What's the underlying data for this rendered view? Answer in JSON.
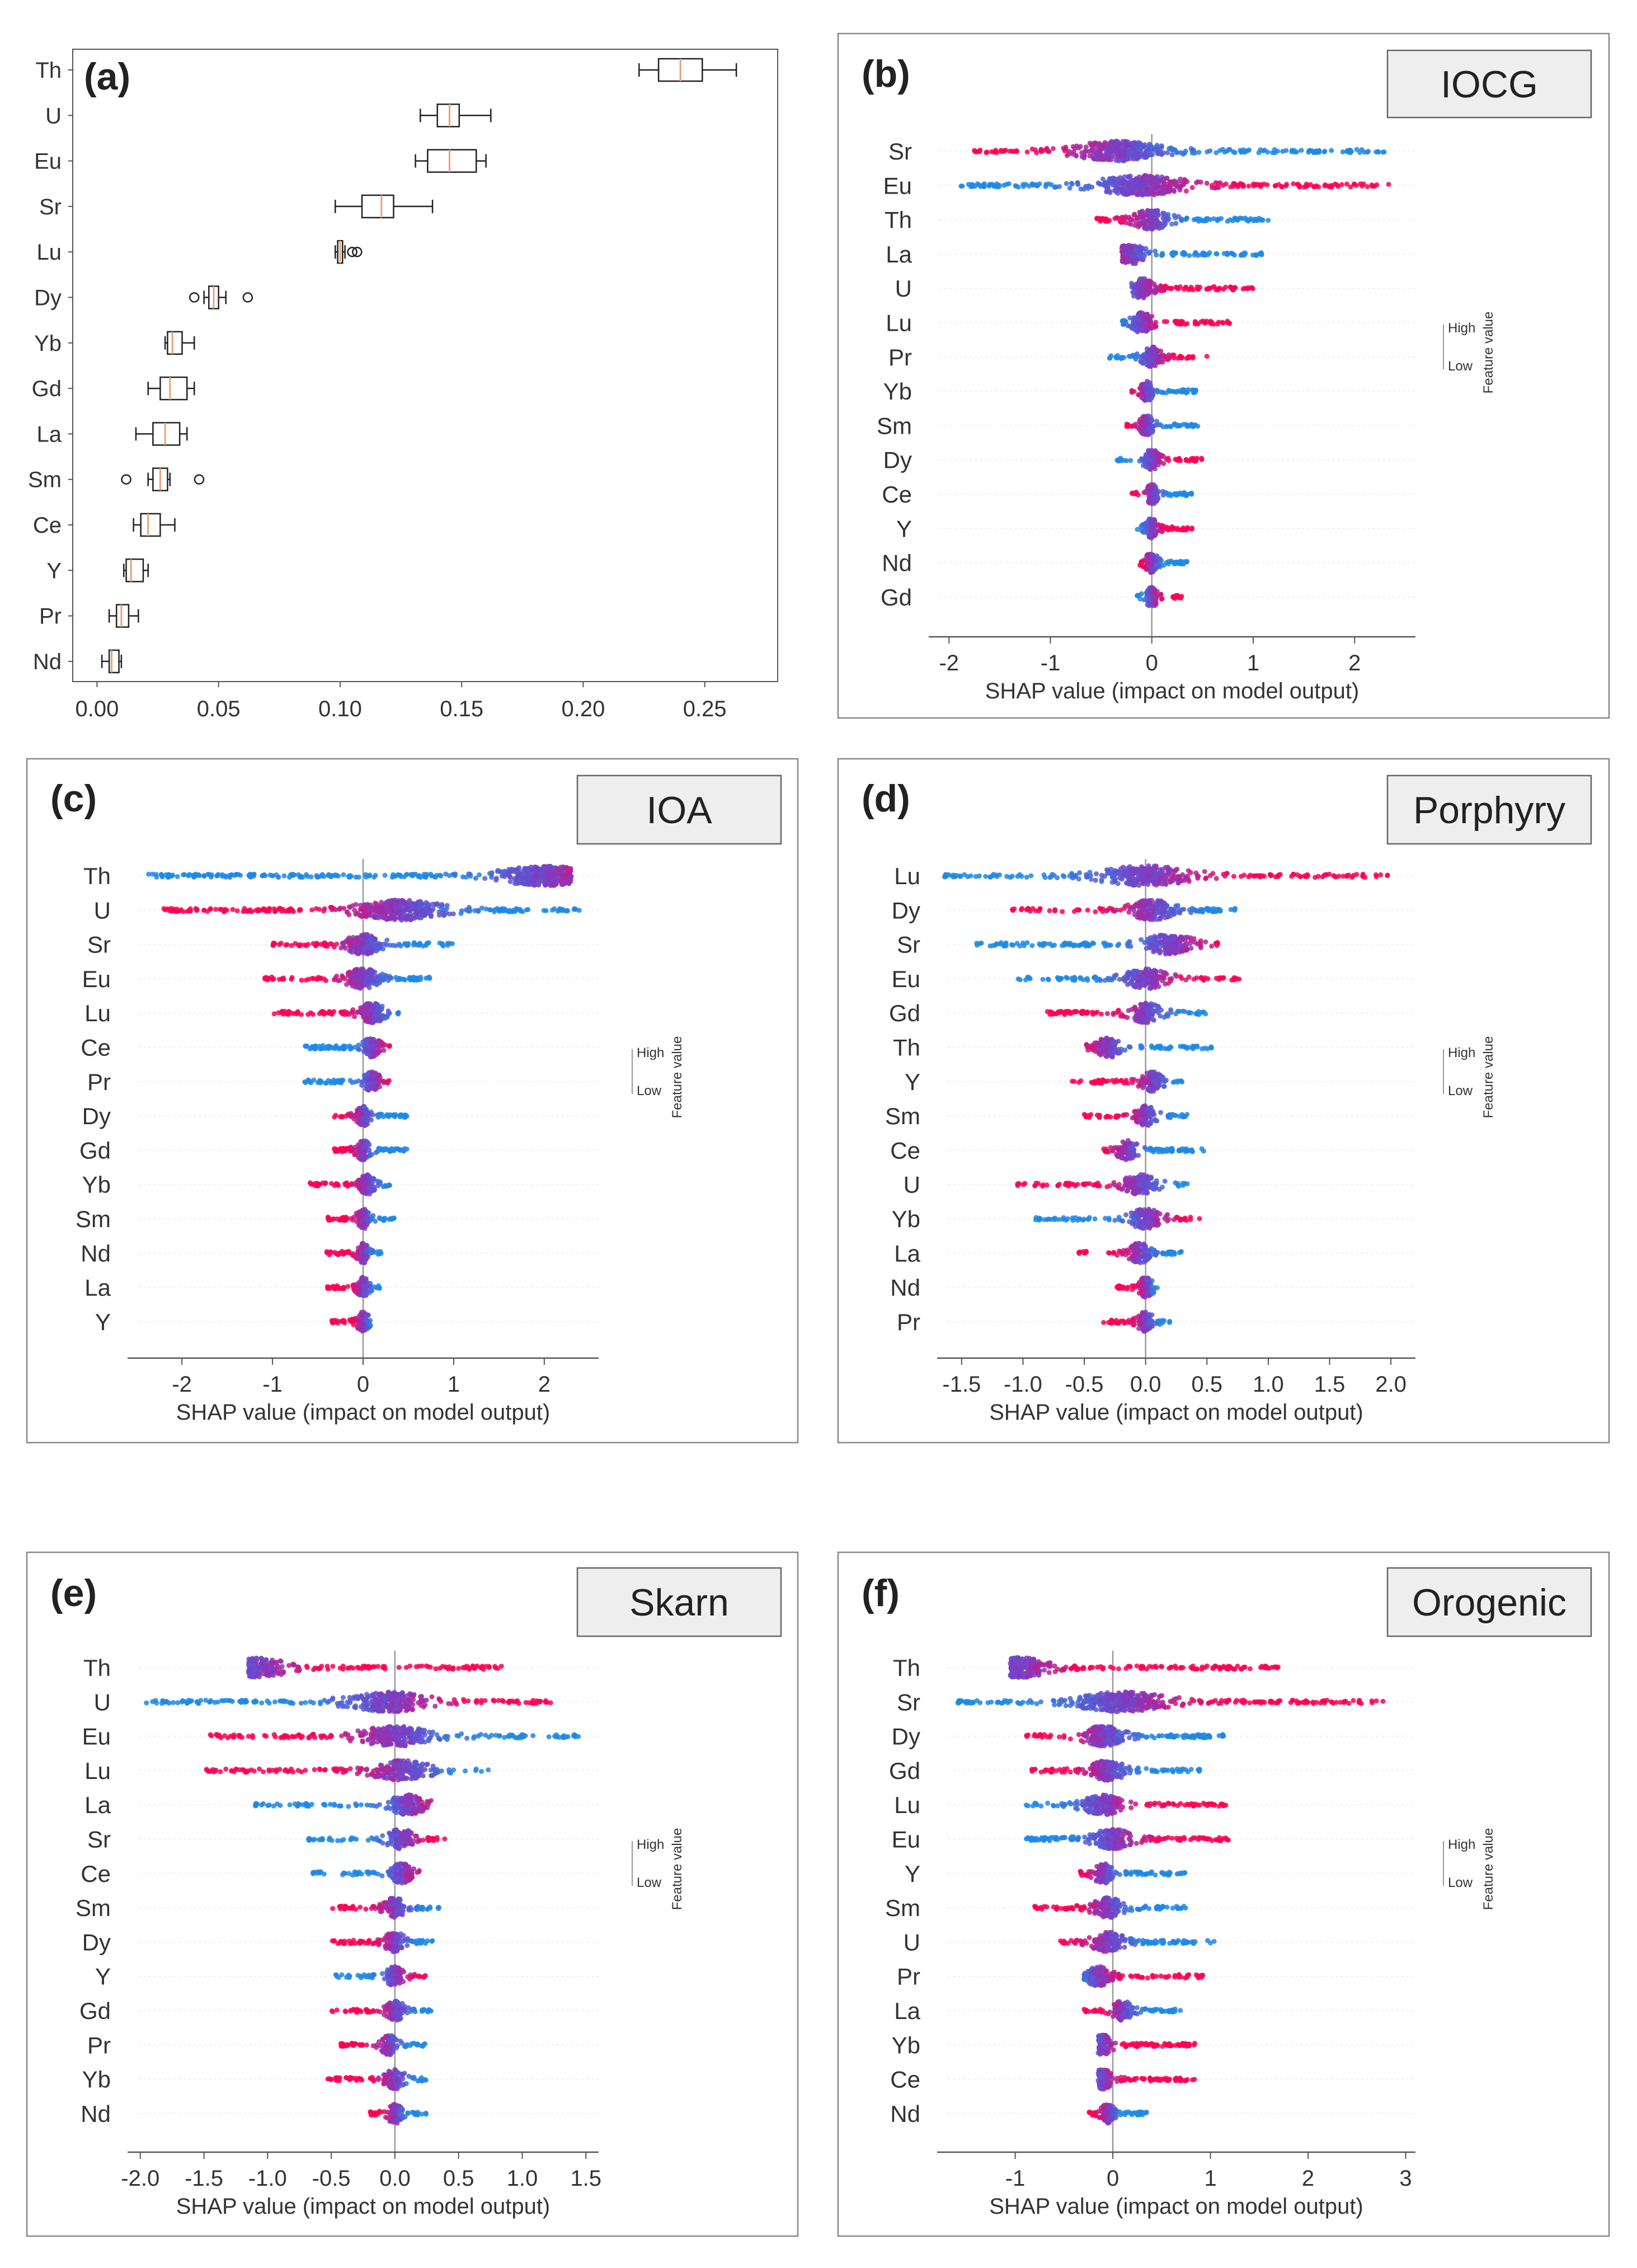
{
  "figure": {
    "x_label": "SHAP value (impact on model output)",
    "legend_high": "High",
    "legend_low": "Low",
    "legend_title": "Feature value",
    "colors": {
      "low": "#1e88e5",
      "mid": "#7a3ec7",
      "high": "#ff0052",
      "box": "#222222",
      "median": "#e8a37a",
      "frame": "#888888",
      "label_box_fill": "#eeeeee"
    }
  },
  "chart_data": [
    {
      "panel": "(a)",
      "type": "box",
      "title": "",
      "xlim": [
        -0.01,
        0.28
      ],
      "xticks": [
        0.0,
        0.05,
        0.1,
        0.15,
        0.2,
        0.25
      ],
      "xtick_labels": [
        "0.00",
        "0.05",
        "0.10",
        "0.15",
        "0.20",
        "0.25"
      ],
      "categories": [
        "Th",
        "U",
        "Eu",
        "Sr",
        "Lu",
        "Dy",
        "Yb",
        "Gd",
        "La",
        "Sm",
        "Ce",
        "Y",
        "Pr",
        "Nd"
      ],
      "boxes": [
        {
          "min": 0.223,
          "q1": 0.231,
          "median": 0.24,
          "q3": 0.249,
          "max": 0.263,
          "outliers": []
        },
        {
          "min": 0.133,
          "q1": 0.14,
          "median": 0.145,
          "q3": 0.149,
          "max": 0.162,
          "outliers": []
        },
        {
          "min": 0.131,
          "q1": 0.136,
          "median": 0.145,
          "q3": 0.156,
          "max": 0.16,
          "outliers": []
        },
        {
          "min": 0.098,
          "q1": 0.109,
          "median": 0.117,
          "q3": 0.122,
          "max": 0.138,
          "outliers": []
        },
        {
          "min": 0.098,
          "q1": 0.099,
          "median": 0.1,
          "q3": 0.101,
          "max": 0.102,
          "outliers": [
            0.105,
            0.107
          ]
        },
        {
          "min": 0.044,
          "q1": 0.046,
          "median": 0.048,
          "q3": 0.05,
          "max": 0.053,
          "outliers": [
            0.04,
            0.062
          ]
        },
        {
          "min": 0.028,
          "q1": 0.029,
          "median": 0.031,
          "q3": 0.035,
          "max": 0.04,
          "outliers": []
        },
        {
          "min": 0.021,
          "q1": 0.026,
          "median": 0.03,
          "q3": 0.037,
          "max": 0.04,
          "outliers": []
        },
        {
          "min": 0.016,
          "q1": 0.023,
          "median": 0.028,
          "q3": 0.034,
          "max": 0.037,
          "outliers": []
        },
        {
          "min": 0.021,
          "q1": 0.023,
          "median": 0.026,
          "q3": 0.029,
          "max": 0.03,
          "outliers": [
            0.012,
            0.042
          ]
        },
        {
          "min": 0.015,
          "q1": 0.018,
          "median": 0.021,
          "q3": 0.026,
          "max": 0.032,
          "outliers": []
        },
        {
          "min": 0.011,
          "q1": 0.012,
          "median": 0.014,
          "q3": 0.019,
          "max": 0.021,
          "outliers": []
        },
        {
          "min": 0.005,
          "q1": 0.008,
          "median": 0.01,
          "q3": 0.013,
          "max": 0.017,
          "outliers": []
        },
        {
          "min": 0.002,
          "q1": 0.005,
          "median": 0.006,
          "q3": 0.009,
          "max": 0.01,
          "outliers": []
        }
      ]
    },
    {
      "panel": "(b)",
      "type": "beeswarm",
      "title": "IOCG",
      "xlabel": "SHAP value (impact on model output)",
      "xlim": [
        -2.2,
        2.6
      ],
      "xticks": [
        -2,
        -1,
        0,
        1,
        2
      ],
      "xtick_labels": [
        "-2",
        "-1",
        "0",
        "1",
        "2"
      ],
      "features": [
        {
          "name": "Sr",
          "min": -1.8,
          "max": 2.3,
          "center": -0.35,
          "dir": -1
        },
        {
          "name": "Eu",
          "min": -1.9,
          "max": 2.35,
          "center": -0.1,
          "dir": 1
        },
        {
          "name": "Th",
          "min": -0.55,
          "max": 1.2,
          "center": 0.0,
          "dir": -1
        },
        {
          "name": "La",
          "min": -0.3,
          "max": 1.1,
          "center": -0.2,
          "dir": -1
        },
        {
          "name": "U",
          "min": -0.2,
          "max": 1.0,
          "center": -0.1,
          "dir": 1
        },
        {
          "name": "Lu",
          "min": -0.3,
          "max": 0.8,
          "center": -0.1,
          "dir": 1
        },
        {
          "name": "Pr",
          "min": -0.45,
          "max": 0.55,
          "center": 0.0,
          "dir": 1
        },
        {
          "name": "Yb",
          "min": -0.2,
          "max": 0.45,
          "center": -0.05,
          "dir": -1
        },
        {
          "name": "Sm",
          "min": -0.25,
          "max": 0.5,
          "center": -0.05,
          "dir": -1
        },
        {
          "name": "Dy",
          "min": -0.35,
          "max": 0.5,
          "center": 0.0,
          "dir": 1
        },
        {
          "name": "Ce",
          "min": -0.2,
          "max": 0.4,
          "center": 0.0,
          "dir": -1
        },
        {
          "name": "Y",
          "min": -0.15,
          "max": 0.4,
          "center": 0.0,
          "dir": 1
        },
        {
          "name": "Nd",
          "min": -0.15,
          "max": 0.35,
          "center": 0.0,
          "dir": -1
        },
        {
          "name": "Gd",
          "min": -0.15,
          "max": 0.3,
          "center": 0.0,
          "dir": 1
        }
      ]
    },
    {
      "panel": "(c)",
      "type": "beeswarm",
      "title": "IOA",
      "xlabel": "SHAP value (impact on model output)",
      "xlim": [
        -2.6,
        2.6
      ],
      "xticks": [
        -2,
        -1,
        0,
        1,
        2
      ],
      "xtick_labels": [
        "-2",
        "-1",
        "0",
        "1",
        "2"
      ],
      "features": [
        {
          "name": "Th",
          "min": -2.4,
          "max": 2.3,
          "center": 2.0,
          "dir": 1
        },
        {
          "name": "U",
          "min": -2.2,
          "max": 2.4,
          "center": 0.4,
          "dir": -1
        },
        {
          "name": "Sr",
          "min": -1.0,
          "max": 1.0,
          "center": 0.0,
          "dir": -1
        },
        {
          "name": "Eu",
          "min": -1.1,
          "max": 0.75,
          "center": 0.0,
          "dir": -1
        },
        {
          "name": "Lu",
          "min": -1.0,
          "max": 0.4,
          "center": 0.1,
          "dir": -1
        },
        {
          "name": "Ce",
          "min": -0.65,
          "max": 0.3,
          "center": 0.1,
          "dir": 1
        },
        {
          "name": "Pr",
          "min": -0.65,
          "max": 0.3,
          "center": 0.1,
          "dir": 1
        },
        {
          "name": "Dy",
          "min": -0.35,
          "max": 0.5,
          "center": 0.0,
          "dir": -1
        },
        {
          "name": "Gd",
          "min": -0.35,
          "max": 0.5,
          "center": 0.0,
          "dir": -1
        },
        {
          "name": "Yb",
          "min": -0.6,
          "max": 0.3,
          "center": 0.05,
          "dir": -1
        },
        {
          "name": "Sm",
          "min": -0.4,
          "max": 0.35,
          "center": 0.0,
          "dir": -1
        },
        {
          "name": "Nd",
          "min": -0.4,
          "max": 0.2,
          "center": 0.0,
          "dir": -1
        },
        {
          "name": "La",
          "min": -0.4,
          "max": 0.2,
          "center": 0.0,
          "dir": -1
        },
        {
          "name": "Y",
          "min": -0.35,
          "max": 0.15,
          "center": 0.0,
          "dir": -1
        }
      ]
    },
    {
      "panel": "(d)",
      "type": "beeswarm",
      "title": "Porphyry",
      "xlabel": "SHAP value (impact on model output)",
      "xlim": [
        -1.7,
        2.2
      ],
      "xticks": [
        -1.5,
        -1.0,
        -0.5,
        0.0,
        0.5,
        1.0,
        1.5,
        2.0
      ],
      "xtick_labels": [
        "-1.5",
        "-1.0",
        "-0.5",
        "0.0",
        "0.5",
        "1.0",
        "1.5",
        "2.0"
      ],
      "features": [
        {
          "name": "Lu",
          "min": -1.65,
          "max": 2.0,
          "center": 0.0,
          "dir": 1
        },
        {
          "name": "Dy",
          "min": -1.1,
          "max": 0.75,
          "center": 0.05,
          "dir": -1
        },
        {
          "name": "Sr",
          "min": -1.4,
          "max": 0.6,
          "center": 0.2,
          "dir": 1
        },
        {
          "name": "Eu",
          "min": -1.05,
          "max": 0.8,
          "center": 0.0,
          "dir": 1
        },
        {
          "name": "Gd",
          "min": -0.85,
          "max": 0.5,
          "center": 0.0,
          "dir": -1
        },
        {
          "name": "Th",
          "min": -0.5,
          "max": 0.55,
          "center": -0.3,
          "dir": -1
        },
        {
          "name": "Y",
          "min": -0.6,
          "max": 0.3,
          "center": 0.05,
          "dir": -1
        },
        {
          "name": "Sm",
          "min": -0.5,
          "max": 0.35,
          "center": 0.0,
          "dir": -1
        },
        {
          "name": "Ce",
          "min": -0.35,
          "max": 0.5,
          "center": -0.15,
          "dir": -1
        },
        {
          "name": "U",
          "min": -1.05,
          "max": 0.35,
          "center": -0.05,
          "dir": -1
        },
        {
          "name": "Yb",
          "min": -0.9,
          "max": 0.45,
          "center": 0.0,
          "dir": 1
        },
        {
          "name": "La",
          "min": -0.55,
          "max": 0.3,
          "center": -0.05,
          "dir": -1
        },
        {
          "name": "Nd",
          "min": -0.25,
          "max": 0.1,
          "center": 0.0,
          "dir": -1
        },
        {
          "name": "Pr",
          "min": -0.35,
          "max": 0.2,
          "center": 0.0,
          "dir": -1
        }
      ]
    },
    {
      "panel": "(e)",
      "type": "beeswarm",
      "title": "Skarn",
      "xlabel": "SHAP value (impact on model output)",
      "xlim": [
        -2.1,
        1.6
      ],
      "xticks": [
        -2.0,
        -1.5,
        -1.0,
        -0.5,
        0.0,
        0.5,
        1.0,
        1.5
      ],
      "xtick_labels": [
        "-2.0",
        "-1.5",
        "-1.0",
        "-0.5",
        "0.0",
        "0.5",
        "1.0",
        "1.5"
      ],
      "features": [
        {
          "name": "Th",
          "min": -1.15,
          "max": 0.85,
          "center": -1.05,
          "dir": 1
        },
        {
          "name": "U",
          "min": -2.0,
          "max": 1.25,
          "center": -0.05,
          "dir": 1
        },
        {
          "name": "Eu",
          "min": -1.45,
          "max": 1.45,
          "center": 0.0,
          "dir": -1
        },
        {
          "name": "Lu",
          "min": -1.5,
          "max": 0.75,
          "center": 0.05,
          "dir": -1
        },
        {
          "name": "La",
          "min": -1.1,
          "max": 0.3,
          "center": 0.1,
          "dir": 1
        },
        {
          "name": "Sr",
          "min": -0.7,
          "max": 0.4,
          "center": 0.05,
          "dir": 1
        },
        {
          "name": "Ce",
          "min": -0.65,
          "max": 0.2,
          "center": 0.05,
          "dir": 1
        },
        {
          "name": "Sm",
          "min": -0.5,
          "max": 0.35,
          "center": 0.0,
          "dir": -1
        },
        {
          "name": "Dy",
          "min": -0.5,
          "max": 0.3,
          "center": 0.0,
          "dir": -1
        },
        {
          "name": "Y",
          "min": -0.5,
          "max": 0.25,
          "center": 0.0,
          "dir": 1
        },
        {
          "name": "Gd",
          "min": -0.5,
          "max": 0.3,
          "center": 0.0,
          "dir": -1
        },
        {
          "name": "Pr",
          "min": -0.45,
          "max": 0.25,
          "center": -0.05,
          "dir": -1
        },
        {
          "name": "Yb",
          "min": -0.55,
          "max": 0.25,
          "center": 0.0,
          "dir": -1
        },
        {
          "name": "Nd",
          "min": -0.2,
          "max": 0.25,
          "center": 0.0,
          "dir": -1
        }
      ]
    },
    {
      "panel": "(f)",
      "type": "beeswarm",
      "title": "Orogenic",
      "xlabel": "SHAP value (impact on model output)",
      "xlim": [
        -1.8,
        3.1
      ],
      "xticks": [
        -1,
        0,
        1,
        2,
        3
      ],
      "xtick_labels": [
        "-1",
        "0",
        "1",
        "2",
        "3"
      ],
      "features": [
        {
          "name": "Th",
          "min": -1.05,
          "max": 1.7,
          "center": -0.95,
          "dir": 1
        },
        {
          "name": "Sr",
          "min": -1.6,
          "max": 2.8,
          "center": 0.1,
          "dir": 1
        },
        {
          "name": "Dy",
          "min": -0.9,
          "max": 1.15,
          "center": -0.1,
          "dir": -1
        },
        {
          "name": "Gd",
          "min": -0.85,
          "max": 0.9,
          "center": -0.05,
          "dir": -1
        },
        {
          "name": "Lu",
          "min": -0.9,
          "max": 1.2,
          "center": -0.1,
          "dir": 1
        },
        {
          "name": "Eu",
          "min": -0.95,
          "max": 1.2,
          "center": 0.0,
          "dir": 1
        },
        {
          "name": "Y",
          "min": -0.35,
          "max": 0.75,
          "center": -0.1,
          "dir": -1
        },
        {
          "name": "Sm",
          "min": -0.8,
          "max": 0.75,
          "center": -0.05,
          "dir": -1
        },
        {
          "name": "U",
          "min": -0.55,
          "max": 1.05,
          "center": -0.05,
          "dir": -1
        },
        {
          "name": "Pr",
          "min": -0.3,
          "max": 0.95,
          "center": -0.15,
          "dir": 1
        },
        {
          "name": "La",
          "min": -0.3,
          "max": 0.7,
          "center": 0.1,
          "dir": -1
        },
        {
          "name": "Yb",
          "min": -0.15,
          "max": 0.85,
          "center": -0.1,
          "dir": 1
        },
        {
          "name": "Ce",
          "min": -0.15,
          "max": 0.85,
          "center": -0.1,
          "dir": 1
        },
        {
          "name": "Nd",
          "min": -0.25,
          "max": 0.35,
          "center": -0.05,
          "dir": -1
        }
      ]
    }
  ]
}
